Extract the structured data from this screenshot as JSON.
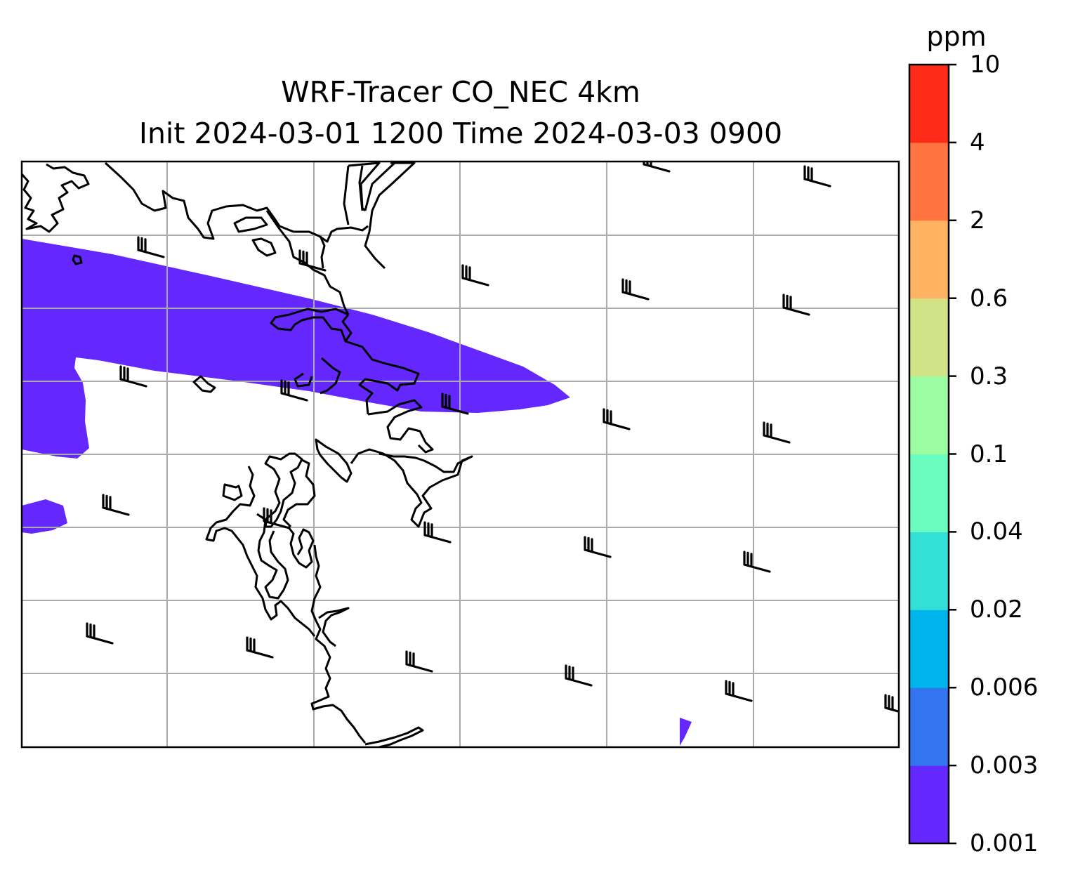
{
  "title": {
    "line1": "WRF-Tracer CO_NEC 4km",
    "line2": "Init 2024-03-01 1200 Time 2024-03-03 0900"
  },
  "colorbar": {
    "unit": "ppm",
    "levels": [
      "0.001",
      "0.003",
      "0.006",
      "0.02",
      "0.04",
      "0.1",
      "0.3",
      "0.6",
      "2",
      "4",
      "10"
    ],
    "colors": [
      "#6428fe",
      "#3374f0",
      "#00b4ec",
      "#33e0d8",
      "#6bfdbf",
      "#9cfca1",
      "#d1e287",
      "#ffb262",
      "#ff7440",
      "#ff2a18"
    ]
  },
  "map": {
    "gridlines": true,
    "gridline_color": "#aaaaaa",
    "coastline_color": "#000000",
    "plume_color": "#6428fe",
    "wind_barbs_icon": "wind-barb-icon"
  }
}
